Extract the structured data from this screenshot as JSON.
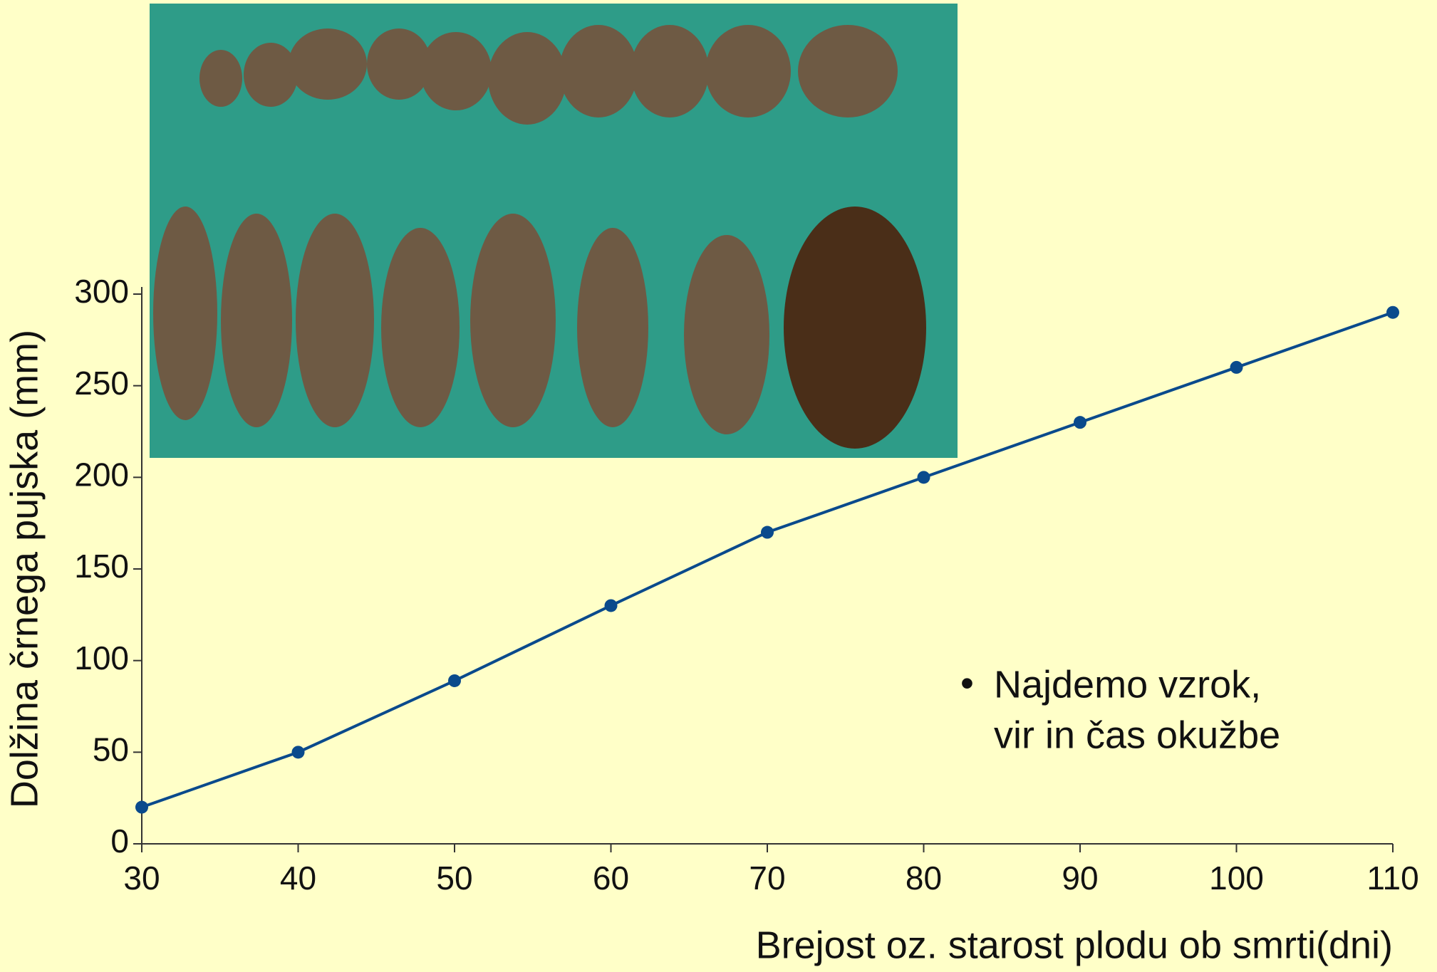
{
  "chart_data": {
    "type": "line",
    "x": [
      30,
      40,
      50,
      60,
      70,
      80,
      90,
      100,
      110
    ],
    "series": [
      {
        "color": "#0a4a8c",
        "values": [
          20,
          50,
          89,
          130,
          170,
          200,
          230,
          260,
          290
        ]
      }
    ],
    "xlim": [
      30,
      110
    ],
    "xticks": [
      30,
      40,
      50,
      60,
      70,
      80,
      90,
      100,
      110
    ],
    "ylim": [
      0,
      300
    ],
    "yticks": [
      0,
      50,
      100,
      150,
      200,
      250,
      300
    ],
    "xlabel": "Brejost oz. starost plodu ob smrti(dni)",
    "ylabel": "Dolžina črnega pujska (mm)",
    "annotation": [
      "Najdemo vzrok,",
      "vir in čas okužbe"
    ]
  }
}
